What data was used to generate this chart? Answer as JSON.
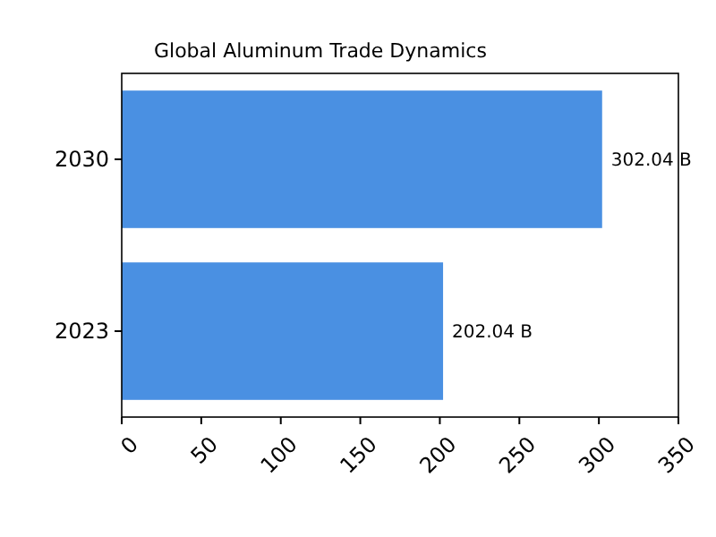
{
  "chart_data": {
    "type": "bar",
    "orientation": "horizontal",
    "title": "Global Aluminum Trade Dynamics",
    "categories": [
      "2030",
      "2023"
    ],
    "values": [
      302.04,
      202.04
    ],
    "value_labels": [
      "302.04 B",
      "202.04 B"
    ],
    "color": "#4a90e2",
    "xlim": [
      0,
      350
    ],
    "xticks": [
      0,
      50,
      100,
      150,
      200,
      250,
      300,
      350
    ],
    "grid": false
  }
}
